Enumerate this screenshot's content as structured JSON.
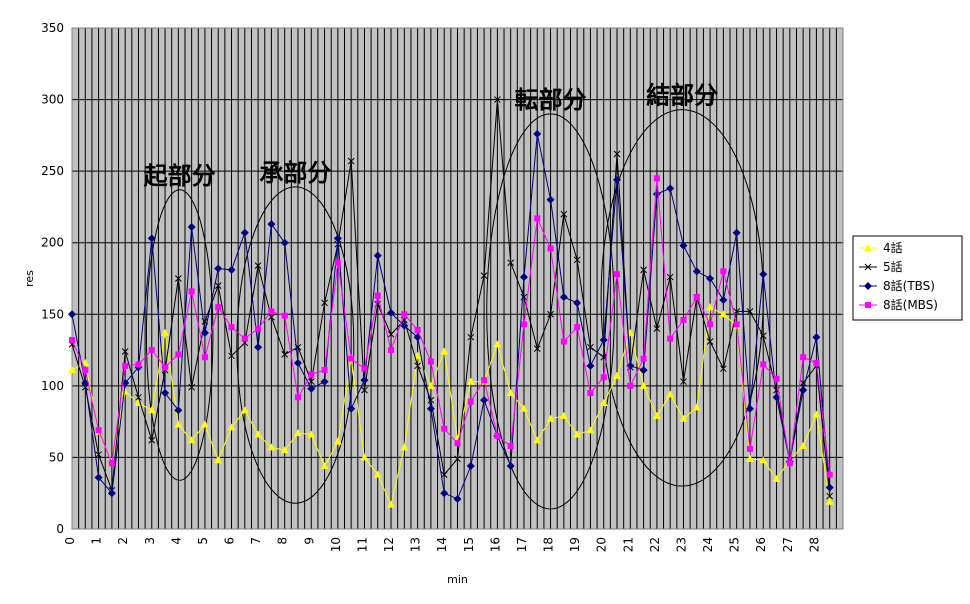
{
  "chart_data": {
    "type": "line",
    "xlabel": "min",
    "ylabel": "res",
    "ylim": [
      0,
      350
    ],
    "yticks": [
      0,
      50,
      100,
      150,
      200,
      250,
      300,
      350
    ],
    "xticks": [
      "0",
      "1",
      "2",
      "3",
      "4",
      "5",
      "6",
      "7",
      "8",
      "9",
      "10",
      "11",
      "12",
      "13",
      "14",
      "15",
      "16",
      "17",
      "18",
      "19",
      "20",
      "21",
      "22",
      "23",
      "24",
      "25",
      "26",
      "27",
      "28"
    ],
    "grid": true,
    "legend": "right",
    "colors": {
      "plot_bg": "#c0c0c0",
      "grid": "#000000",
      "vertical_stripes": "#000000",
      "ellipse": "#000000"
    },
    "annotations": [
      {
        "text": "起部分",
        "ellipse_x": [
          2.8,
          5.3
        ],
        "ellipse_y": [
          34,
          237
        ]
      },
      {
        "text": "承部分",
        "ellipse_x": [
          6.2,
          10.6
        ],
        "ellipse_y": [
          18,
          239
        ]
      },
      {
        "text": "転部分",
        "ellipse_x": [
          15.6,
          20.4
        ],
        "ellipse_y": [
          14,
          290
        ]
      },
      {
        "text": "結部分",
        "ellipse_x": [
          19.9,
          26.0
        ],
        "ellipse_y": [
          30,
          293
        ]
      }
    ],
    "series": [
      {
        "name": "4話",
        "color": "#ffff00",
        "marker": "triangle",
        "points": [
          [
            0.0,
            111
          ],
          [
            0.5,
            116
          ],
          [
            1.0,
            68
          ],
          [
            1.5,
            47
          ],
          [
            2.0,
            96
          ],
          [
            2.5,
            88
          ],
          [
            3.0,
            83
          ],
          [
            3.5,
            137
          ],
          [
            4.0,
            73
          ],
          [
            4.5,
            62
          ],
          [
            5.0,
            73
          ],
          [
            5.5,
            48
          ],
          [
            6.0,
            71
          ],
          [
            6.5,
            83
          ],
          [
            7.0,
            66
          ],
          [
            7.5,
            57
          ],
          [
            8.0,
            55
          ],
          [
            8.5,
            67
          ],
          [
            9.0,
            66
          ],
          [
            9.5,
            44
          ],
          [
            10.0,
            61
          ],
          [
            10.5,
            119
          ],
          [
            11.0,
            50
          ],
          [
            11.5,
            38
          ],
          [
            12.0,
            17
          ],
          [
            12.5,
            57
          ],
          [
            13.0,
            121
          ],
          [
            13.5,
            100
          ],
          [
            14.0,
            124
          ],
          [
            14.5,
            63
          ],
          [
            15.0,
            103
          ],
          [
            15.5,
            103
          ],
          [
            16.0,
            129
          ],
          [
            16.5,
            95
          ],
          [
            17.0,
            84
          ],
          [
            17.5,
            62
          ],
          [
            18.0,
            77
          ],
          [
            18.5,
            79
          ],
          [
            19.0,
            66
          ],
          [
            19.5,
            69
          ],
          [
            20.0,
            88
          ],
          [
            20.5,
            107
          ],
          [
            21.0,
            137
          ],
          [
            21.5,
            100
          ],
          [
            22.0,
            79
          ],
          [
            22.5,
            94
          ],
          [
            23.0,
            77
          ],
          [
            23.5,
            85
          ],
          [
            24.0,
            155
          ],
          [
            24.5,
            150
          ],
          [
            25.0,
            142
          ],
          [
            25.5,
            49
          ],
          [
            26.0,
            48
          ],
          [
            26.5,
            35
          ],
          [
            27.0,
            48
          ],
          [
            27.5,
            58
          ],
          [
            28.0,
            80
          ],
          [
            28.5,
            19
          ]
        ]
      },
      {
        "name": "5話",
        "color": "#000000",
        "marker": "x",
        "points": [
          [
            0.0,
            129
          ],
          [
            0.5,
            99
          ],
          [
            1.0,
            52
          ],
          [
            1.5,
            27
          ],
          [
            2.0,
            124
          ],
          [
            2.5,
            92
          ],
          [
            3.0,
            62
          ],
          [
            3.5,
            111
          ],
          [
            4.0,
            175
          ],
          [
            4.5,
            99
          ],
          [
            5.0,
            145
          ],
          [
            5.5,
            170
          ],
          [
            6.0,
            121
          ],
          [
            6.5,
            130
          ],
          [
            7.0,
            184
          ],
          [
            7.5,
            148
          ],
          [
            8.0,
            122
          ],
          [
            8.5,
            127
          ],
          [
            9.0,
            103
          ],
          [
            9.5,
            158
          ],
          [
            10.0,
            199
          ],
          [
            10.5,
            257
          ],
          [
            11.0,
            97
          ],
          [
            11.5,
            157
          ],
          [
            12.0,
            136
          ],
          [
            12.5,
            146
          ],
          [
            13.0,
            114
          ],
          [
            13.5,
            90
          ],
          [
            14.0,
            38
          ],
          [
            14.5,
            49
          ],
          [
            15.0,
            134
          ],
          [
            15.5,
            177
          ],
          [
            16.0,
            300
          ],
          [
            16.5,
            186
          ],
          [
            17.0,
            162
          ],
          [
            17.5,
            126
          ],
          [
            18.0,
            150
          ],
          [
            18.5,
            220
          ],
          [
            19.0,
            188
          ],
          [
            19.5,
            127
          ],
          [
            20.0,
            120
          ],
          [
            20.5,
            262
          ],
          [
            21.0,
            113
          ],
          [
            21.5,
            181
          ],
          [
            22.0,
            140
          ],
          [
            22.5,
            176
          ],
          [
            23.0,
            103
          ],
          [
            23.5,
            162
          ],
          [
            24.0,
            131
          ],
          [
            24.5,
            112
          ],
          [
            25.0,
            152
          ],
          [
            25.5,
            152
          ],
          [
            26.0,
            135
          ],
          [
            26.5,
            97
          ],
          [
            27.0,
            48
          ],
          [
            27.5,
            102
          ],
          [
            28.0,
            114
          ],
          [
            28.5,
            23
          ]
        ]
      },
      {
        "name": "8話(TBS)",
        "color": "#000080",
        "marker": "diamond",
        "points": [
          [
            0.0,
            150
          ],
          [
            0.5,
            102
          ],
          [
            1.0,
            36
          ],
          [
            1.5,
            25
          ],
          [
            2.0,
            102
          ],
          [
            2.5,
            113
          ],
          [
            3.0,
            203
          ],
          [
            3.5,
            95
          ],
          [
            4.0,
            83
          ],
          [
            4.5,
            211
          ],
          [
            5.0,
            137
          ],
          [
            5.5,
            182
          ],
          [
            6.0,
            181
          ],
          [
            6.5,
            207
          ],
          [
            7.0,
            127
          ],
          [
            7.5,
            213
          ],
          [
            8.0,
            200
          ],
          [
            8.5,
            116
          ],
          [
            9.0,
            98
          ],
          [
            9.5,
            103
          ],
          [
            10.0,
            203
          ],
          [
            10.5,
            84
          ],
          [
            11.0,
            104
          ],
          [
            11.5,
            191
          ],
          [
            12.0,
            151
          ],
          [
            12.5,
            142
          ],
          [
            13.0,
            134
          ],
          [
            13.5,
            84
          ],
          [
            14.0,
            25
          ],
          [
            14.5,
            21
          ],
          [
            15.0,
            44
          ],
          [
            15.5,
            90
          ],
          [
            16.0,
            65
          ],
          [
            16.5,
            44
          ],
          [
            17.0,
            176
          ],
          [
            17.5,
            276
          ],
          [
            18.0,
            230
          ],
          [
            18.5,
            162
          ],
          [
            19.0,
            158
          ],
          [
            19.5,
            114
          ],
          [
            20.0,
            132
          ],
          [
            20.5,
            244
          ],
          [
            21.0,
            114
          ],
          [
            21.5,
            111
          ],
          [
            22.0,
            234
          ],
          [
            22.5,
            238
          ],
          [
            23.0,
            198
          ],
          [
            23.5,
            180
          ],
          [
            24.0,
            175
          ],
          [
            24.5,
            160
          ],
          [
            25.0,
            207
          ],
          [
            25.5,
            84
          ],
          [
            26.0,
            178
          ],
          [
            26.5,
            92
          ],
          [
            27.0,
            47
          ],
          [
            27.5,
            97
          ],
          [
            28.0,
            134
          ],
          [
            28.5,
            29
          ]
        ]
      },
      {
        "name": "8話(MBS)",
        "color": "#ff00ff",
        "marker": "square",
        "points": [
          [
            0.0,
            132
          ],
          [
            0.5,
            111
          ],
          [
            1.0,
            69
          ],
          [
            1.5,
            46
          ],
          [
            2.0,
            114
          ],
          [
            2.5,
            115
          ],
          [
            3.0,
            125
          ],
          [
            3.5,
            113
          ],
          [
            4.0,
            122
          ],
          [
            4.5,
            166
          ],
          [
            5.0,
            120
          ],
          [
            5.5,
            155
          ],
          [
            6.0,
            141
          ],
          [
            6.5,
            133
          ],
          [
            7.0,
            140
          ],
          [
            7.5,
            152
          ],
          [
            8.0,
            149
          ],
          [
            8.5,
            92
          ],
          [
            9.0,
            108
          ],
          [
            9.5,
            111
          ],
          [
            10.0,
            186
          ],
          [
            10.5,
            119
          ],
          [
            11.0,
            112
          ],
          [
            11.5,
            163
          ],
          [
            12.0,
            125
          ],
          [
            12.5,
            150
          ],
          [
            13.0,
            139
          ],
          [
            13.5,
            117
          ],
          [
            14.0,
            70
          ],
          [
            14.5,
            60
          ],
          [
            15.0,
            89
          ],
          [
            15.5,
            104
          ],
          [
            16.0,
            65
          ],
          [
            16.5,
            58
          ],
          [
            17.0,
            143
          ],
          [
            17.5,
            217
          ],
          [
            18.0,
            196
          ],
          [
            18.5,
            131
          ],
          [
            19.0,
            141
          ],
          [
            19.5,
            95
          ],
          [
            20.0,
            106
          ],
          [
            20.5,
            178
          ],
          [
            21.0,
            100
          ],
          [
            21.5,
            119
          ],
          [
            22.0,
            245
          ],
          [
            22.5,
            133
          ],
          [
            23.0,
            146
          ],
          [
            23.5,
            162
          ],
          [
            24.0,
            143
          ],
          [
            24.5,
            180
          ],
          [
            25.0,
            143
          ],
          [
            25.5,
            56
          ],
          [
            26.0,
            115
          ],
          [
            26.5,
            105
          ],
          [
            27.0,
            46
          ],
          [
            27.5,
            120
          ],
          [
            28.0,
            116
          ],
          [
            28.5,
            38
          ]
        ]
      }
    ]
  }
}
